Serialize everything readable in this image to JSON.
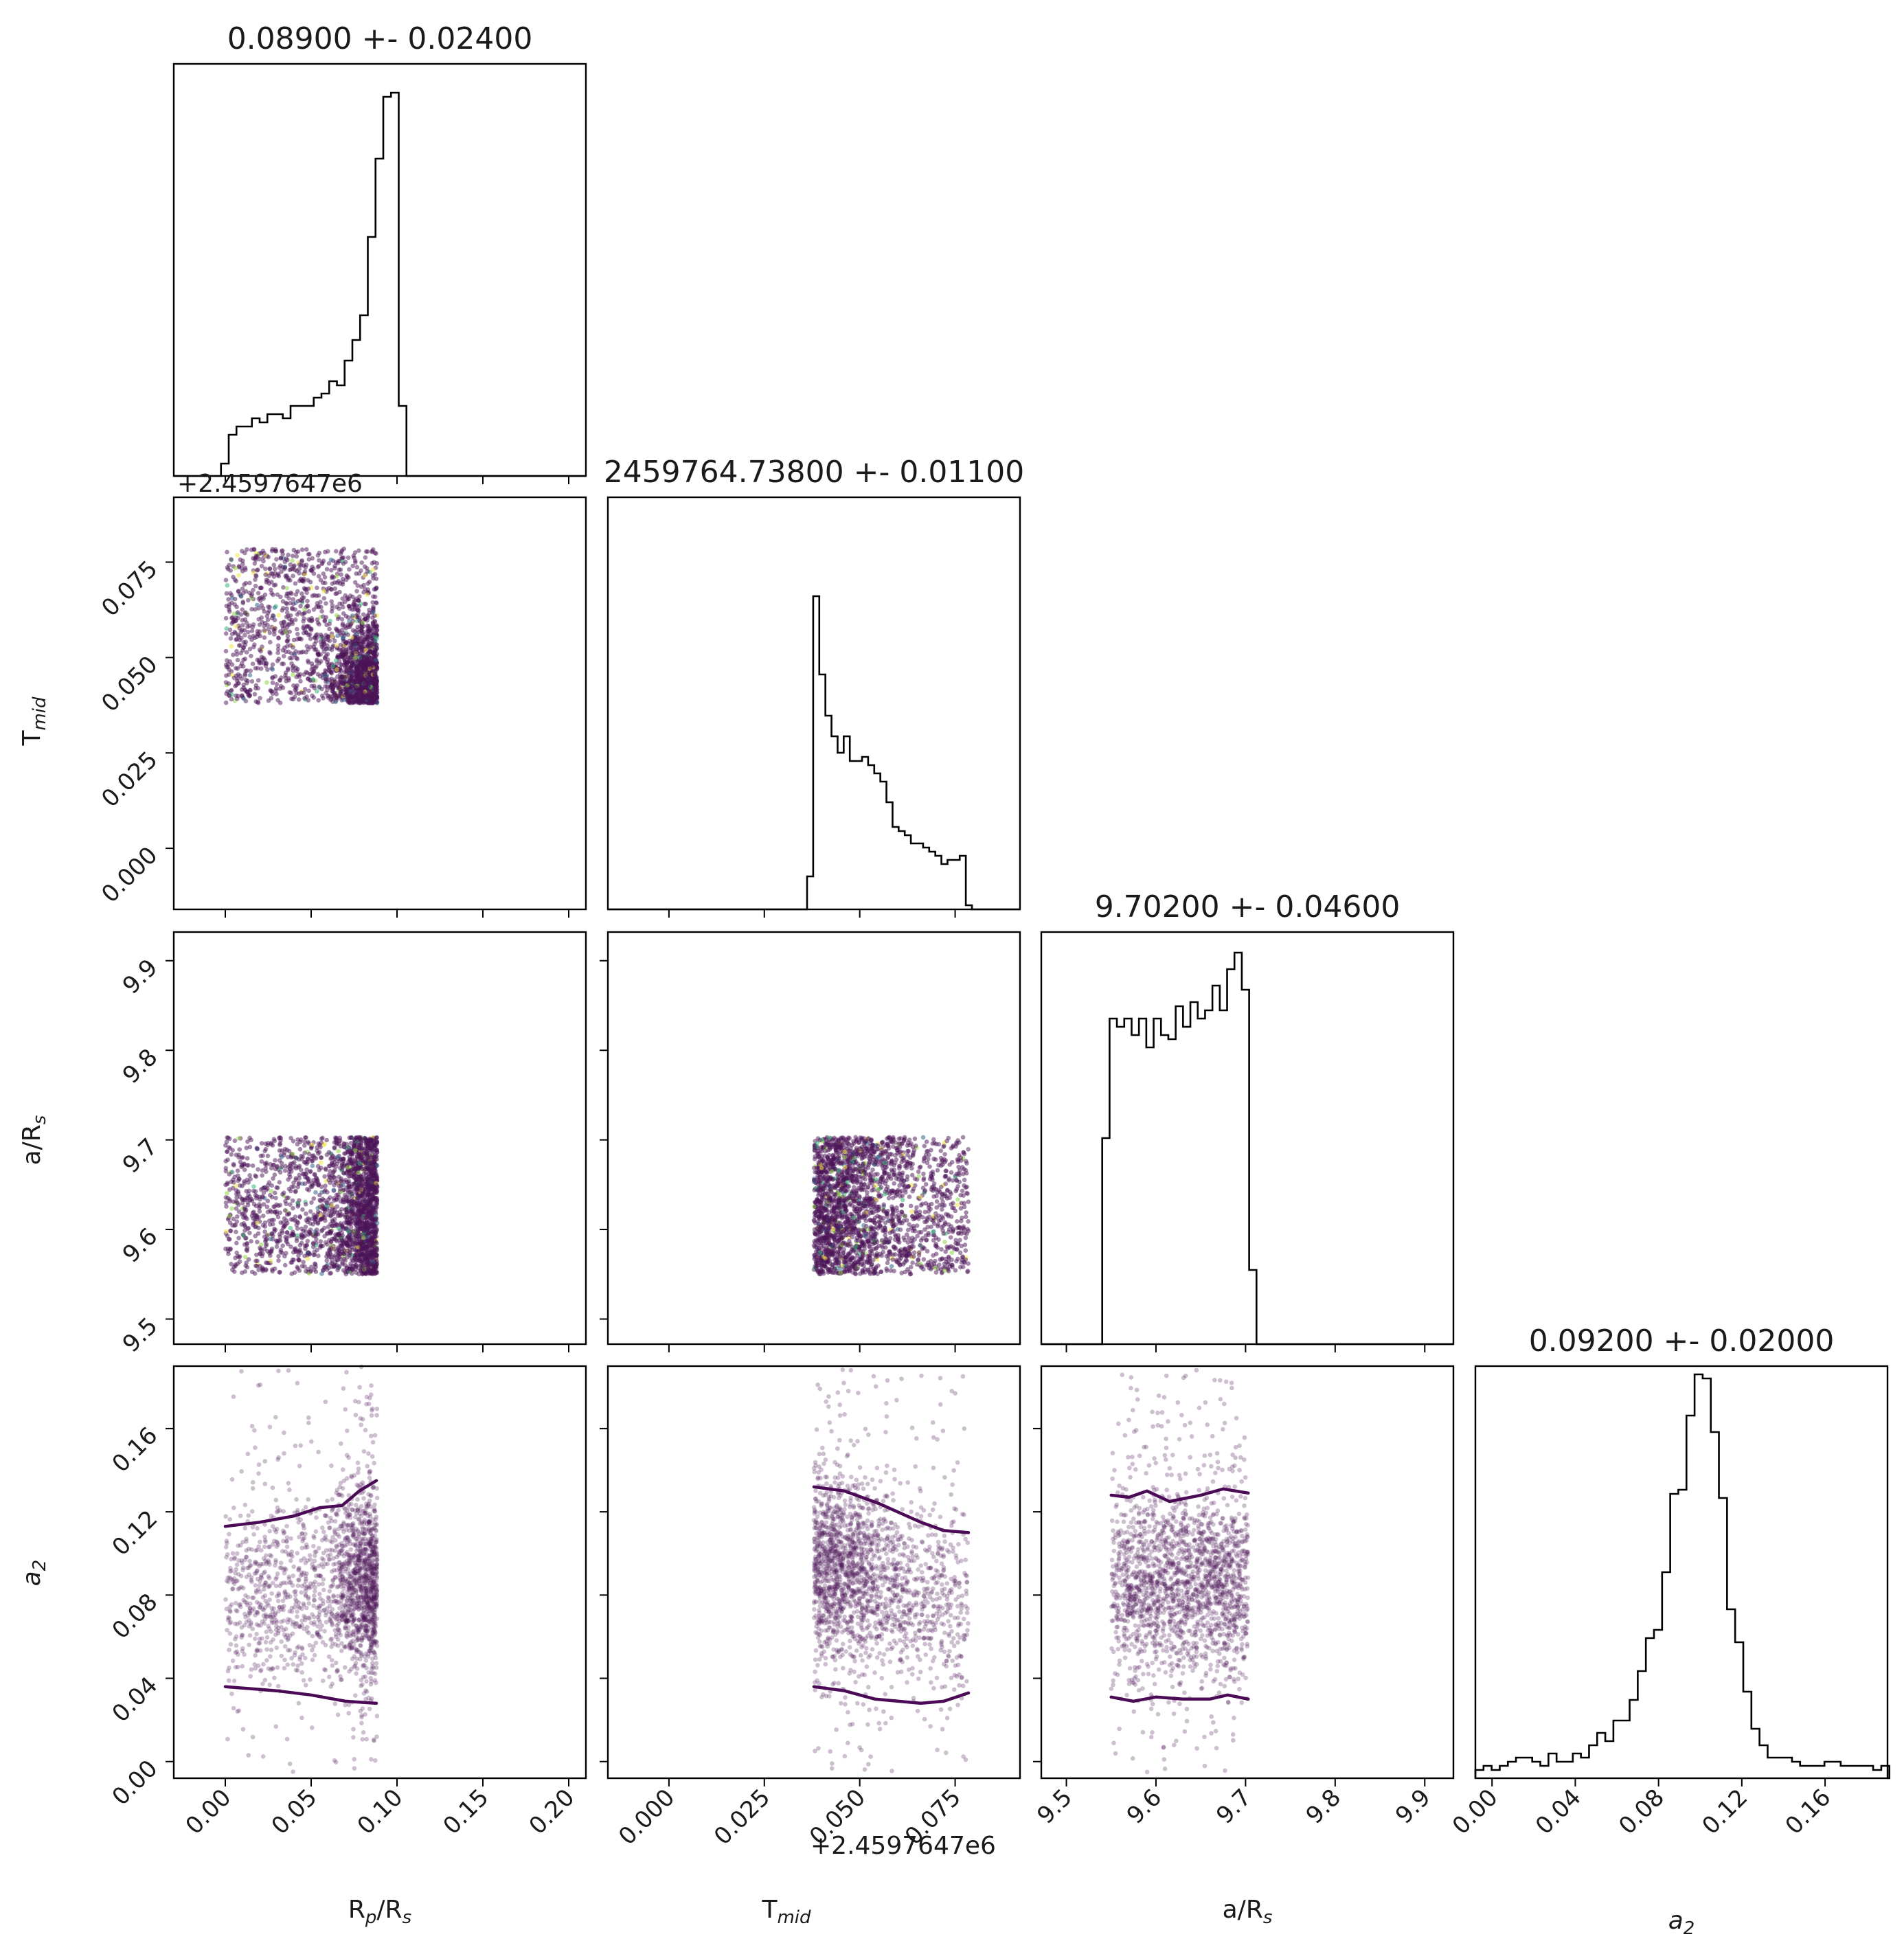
{
  "colors": {
    "axes": "#000000",
    "hist": "#000000",
    "points": "#4b1457",
    "contour": "#4b0a55",
    "speckle": [
      "#f0e442",
      "#35b779",
      "#31688e",
      "#8fd744"
    ]
  },
  "offset_label": "+2.4597647e6",
  "chart_data": {
    "type": "scatter",
    "subtype": "corner-plot",
    "parameters": [
      {
        "key": "rp",
        "label_main": "R",
        "label_sub": "p",
        "label_tail": "/R",
        "label_sub2": "s",
        "title": "0.08900 +- 0.02400",
        "range": [
          -0.03,
          0.21
        ],
        "ticks": [
          0.0,
          0.05,
          0.1,
          0.15,
          0.2
        ],
        "tick_labels": [
          "0.00",
          "0.05",
          "0.10",
          "0.15",
          "0.20"
        ]
      },
      {
        "key": "tmid",
        "label_main": "T",
        "label_sub": "mid",
        "title": "2459764.73800 +- 0.01100",
        "range": [
          -0.016,
          0.092
        ],
        "ticks": [
          0.0,
          0.025,
          0.05,
          0.075
        ],
        "tick_labels": [
          "0.000",
          "0.025",
          "0.050",
          "0.075"
        ],
        "offset": "+2.4597647e6"
      },
      {
        "key": "ars",
        "label_main": "a/R",
        "label_sub": "s",
        "title": "9.70200 +- 0.04600",
        "range": [
          9.472,
          9.932
        ],
        "ticks": [
          9.5,
          9.6,
          9.7,
          9.8,
          9.9
        ],
        "tick_labels": [
          "9.5",
          "9.6",
          "9.7",
          "9.8",
          "9.9"
        ]
      },
      {
        "key": "a2",
        "label_main": "a",
        "label_sub": "2",
        "italic": true,
        "title": "0.09200 +- 0.02000",
        "range": [
          -0.008,
          0.19
        ],
        "ticks": [
          0.0,
          0.04,
          0.08,
          0.12,
          0.16
        ],
        "tick_labels": [
          "0.00",
          "0.04",
          "0.08",
          "0.12",
          "0.16"
        ]
      }
    ],
    "histograms": {
      "rp": {
        "bin_start": -0.0025,
        "bin_width": 0.0045,
        "counts": [
          0.03,
          0.1,
          0.12,
          0.12,
          0.14,
          0.13,
          0.15,
          0.15,
          0.14,
          0.17,
          0.17,
          0.17,
          0.19,
          0.2,
          0.23,
          0.22,
          0.28,
          0.33,
          0.39,
          0.58,
          0.77,
          0.92,
          0.93,
          0.17,
          0.0
        ]
      },
      "tmid": {
        "bin_start": 0.0362,
        "bin_width": 0.0016,
        "counts": [
          0.08,
          0.76,
          0.57,
          0.47,
          0.42,
          0.38,
          0.42,
          0.36,
          0.36,
          0.37,
          0.35,
          0.33,
          0.31,
          0.26,
          0.2,
          0.19,
          0.18,
          0.16,
          0.16,
          0.15,
          0.14,
          0.13,
          0.11,
          0.12,
          0.12,
          0.13,
          0.01
        ]
      },
      "ars": {
        "bin_start": 9.54,
        "bin_width": 0.0082,
        "counts": [
          0.5,
          0.79,
          0.77,
          0.79,
          0.75,
          0.79,
          0.72,
          0.79,
          0.75,
          0.74,
          0.82,
          0.77,
          0.83,
          0.79,
          0.81,
          0.87,
          0.81,
          0.91,
          0.95,
          0.86,
          0.18
        ]
      },
      "a2": {
        "bin_start": -0.008,
        "bin_width": 0.0039,
        "counts": [
          0.02,
          0.03,
          0.02,
          0.03,
          0.04,
          0.05,
          0.05,
          0.04,
          0.03,
          0.06,
          0.04,
          0.04,
          0.06,
          0.05,
          0.08,
          0.11,
          0.09,
          0.14,
          0.14,
          0.19,
          0.26,
          0.34,
          0.36,
          0.5,
          0.69,
          0.7,
          0.88,
          0.98,
          0.97,
          0.84,
          0.68,
          0.41,
          0.33,
          0.21,
          0.12,
          0.08,
          0.05,
          0.05,
          0.05,
          0.04,
          0.03,
          0.03,
          0.03,
          0.04,
          0.04,
          0.03,
          0.03,
          0.03,
          0.03,
          0.02,
          0.03
        ]
      }
    },
    "scatter_bounds": {
      "rp": [
        0.0,
        0.0885
      ],
      "tmid": [
        0.038,
        0.0785
      ],
      "ars": [
        9.55,
        9.703
      ],
      "a2": [
        -0.005,
        0.19
      ]
    },
    "contours": [
      {
        "x": "rp",
        "y": "a2",
        "lines": [
          [
            [
              0.0,
              0.113
            ],
            [
              0.02,
              0.115
            ],
            [
              0.04,
              0.118
            ],
            [
              0.055,
              0.122
            ],
            [
              0.068,
              0.123
            ],
            [
              0.078,
              0.13
            ],
            [
              0.088,
              0.135
            ]
          ],
          [
            [
              0.0,
              0.036
            ],
            [
              0.03,
              0.034
            ],
            [
              0.05,
              0.032
            ],
            [
              0.07,
              0.029
            ],
            [
              0.088,
              0.028
            ]
          ]
        ]
      },
      {
        "x": "tmid",
        "y": "a2",
        "lines": [
          [
            [
              0.038,
              0.132
            ],
            [
              0.046,
              0.13
            ],
            [
              0.055,
              0.124
            ],
            [
              0.066,
              0.115
            ],
            [
              0.072,
              0.111
            ],
            [
              0.0785,
              0.11
            ]
          ],
          [
            [
              0.038,
              0.036
            ],
            [
              0.046,
              0.034
            ],
            [
              0.054,
              0.03
            ],
            [
              0.066,
              0.028
            ],
            [
              0.072,
              0.029
            ],
            [
              0.0785,
              0.033
            ]
          ]
        ]
      },
      {
        "x": "ars",
        "y": "a2",
        "lines": [
          [
            [
              9.55,
              0.128
            ],
            [
              9.57,
              0.127
            ],
            [
              9.59,
              0.13
            ],
            [
              9.615,
              0.125
            ],
            [
              9.65,
              0.128
            ],
            [
              9.675,
              0.131
            ],
            [
              9.703,
              0.129
            ]
          ],
          [
            [
              9.55,
              0.031
            ],
            [
              9.575,
              0.029
            ],
            [
              9.6,
              0.031
            ],
            [
              9.63,
              0.03
            ],
            [
              9.66,
              0.03
            ],
            [
              9.68,
              0.032
            ],
            [
              9.703,
              0.03
            ]
          ]
        ]
      }
    ]
  }
}
